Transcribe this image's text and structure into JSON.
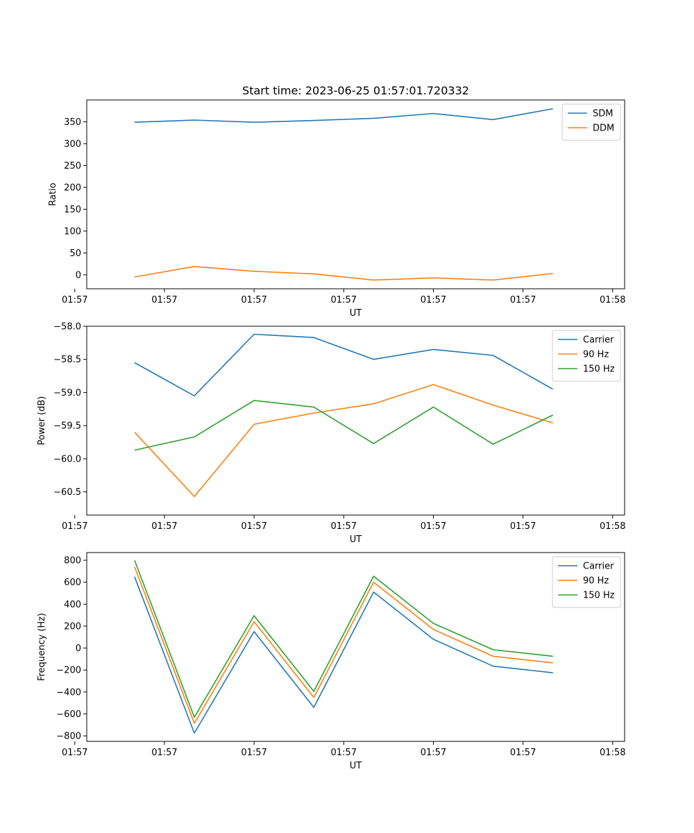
{
  "chart_data": [
    {
      "type": "line",
      "title": "Start time: 2023-06-25 01:57:01.720332",
      "xlabel": "UT",
      "ylabel": "Ratio",
      "x": [
        1,
        2,
        3,
        4,
        5,
        6,
        7,
        8
      ],
      "xlim": [
        0.2,
        9.2
      ],
      "xticks": [
        "01:57",
        "01:57",
        "01:57",
        "01:57",
        "01:57",
        "01:57",
        "01:57"
      ],
      "ylim": [
        -32,
        400
      ],
      "yticks": [
        0,
        50,
        100,
        150,
        200,
        250,
        300,
        350
      ],
      "grid": false,
      "legend": "top-right",
      "series": [
        {
          "name": "SDM",
          "color": "#1f77b4",
          "values": [
            349,
            354,
            349,
            353,
            358,
            369,
            355,
            380
          ]
        },
        {
          "name": "DDM",
          "color": "#ff7f0e",
          "values": [
            -5,
            19,
            8,
            2,
            -12,
            -7,
            -12,
            3
          ]
        }
      ]
    },
    {
      "type": "line",
      "title": "",
      "xlabel": "UT",
      "ylabel": "Power (dB)",
      "x": [
        1,
        2,
        3,
        4,
        5,
        6,
        7,
        8
      ],
      "xlim": [
        0.2,
        9.2
      ],
      "xticks": [
        "01:57",
        "01:57",
        "01:57",
        "01:57",
        "01:57",
        "01:57",
        "01:57"
      ],
      "ylim": [
        -60.85,
        -58.0
      ],
      "yticks": [
        -60.5,
        -60.0,
        -59.5,
        -59.0,
        -58.5,
        -58.0
      ],
      "grid": false,
      "legend": "top-right",
      "series": [
        {
          "name": "Carrier",
          "color": "#1f77b4",
          "values": [
            -58.55,
            -59.05,
            -58.12,
            -58.17,
            -58.5,
            -58.35,
            -58.44,
            -58.95
          ]
        },
        {
          "name": "90 Hz",
          "color": "#ff7f0e",
          "values": [
            -59.6,
            -60.57,
            -59.48,
            -59.31,
            -59.17,
            -58.88,
            -59.19,
            -59.46
          ]
        },
        {
          "name": "150 Hz",
          "color": "#2ca02c",
          "values": [
            -59.87,
            -59.67,
            -59.12,
            -59.22,
            -59.77,
            -59.22,
            -59.78,
            -59.34
          ]
        }
      ]
    },
    {
      "type": "line",
      "title": "",
      "xlabel": "UT",
      "ylabel": "Frequency (Hz)",
      "x": [
        1,
        2,
        3,
        4,
        5,
        6,
        7,
        8
      ],
      "xlim": [
        0.2,
        9.2
      ],
      "xticks": [
        "01:57",
        "01:57",
        "01:57",
        "01:57",
        "01:57",
        "01:57",
        "01:57"
      ],
      "ylim": [
        -850,
        870
      ],
      "yticks": [
        -800,
        -600,
        -400,
        -200,
        0,
        200,
        400,
        600,
        800
      ],
      "grid": false,
      "legend": "top-right",
      "series": [
        {
          "name": "Carrier",
          "color": "#1f77b4",
          "values": [
            650,
            -775,
            150,
            -540,
            510,
            80,
            -165,
            -225
          ]
        },
        {
          "name": "90 Hz",
          "color": "#ff7f0e",
          "values": [
            740,
            -685,
            240,
            -450,
            600,
            170,
            -75,
            -135
          ]
        },
        {
          "name": "150 Hz",
          "color": "#2ca02c",
          "values": [
            800,
            -630,
            295,
            -395,
            655,
            225,
            -15,
            -75
          ]
        }
      ]
    }
  ],
  "last_xtick": "01:58"
}
